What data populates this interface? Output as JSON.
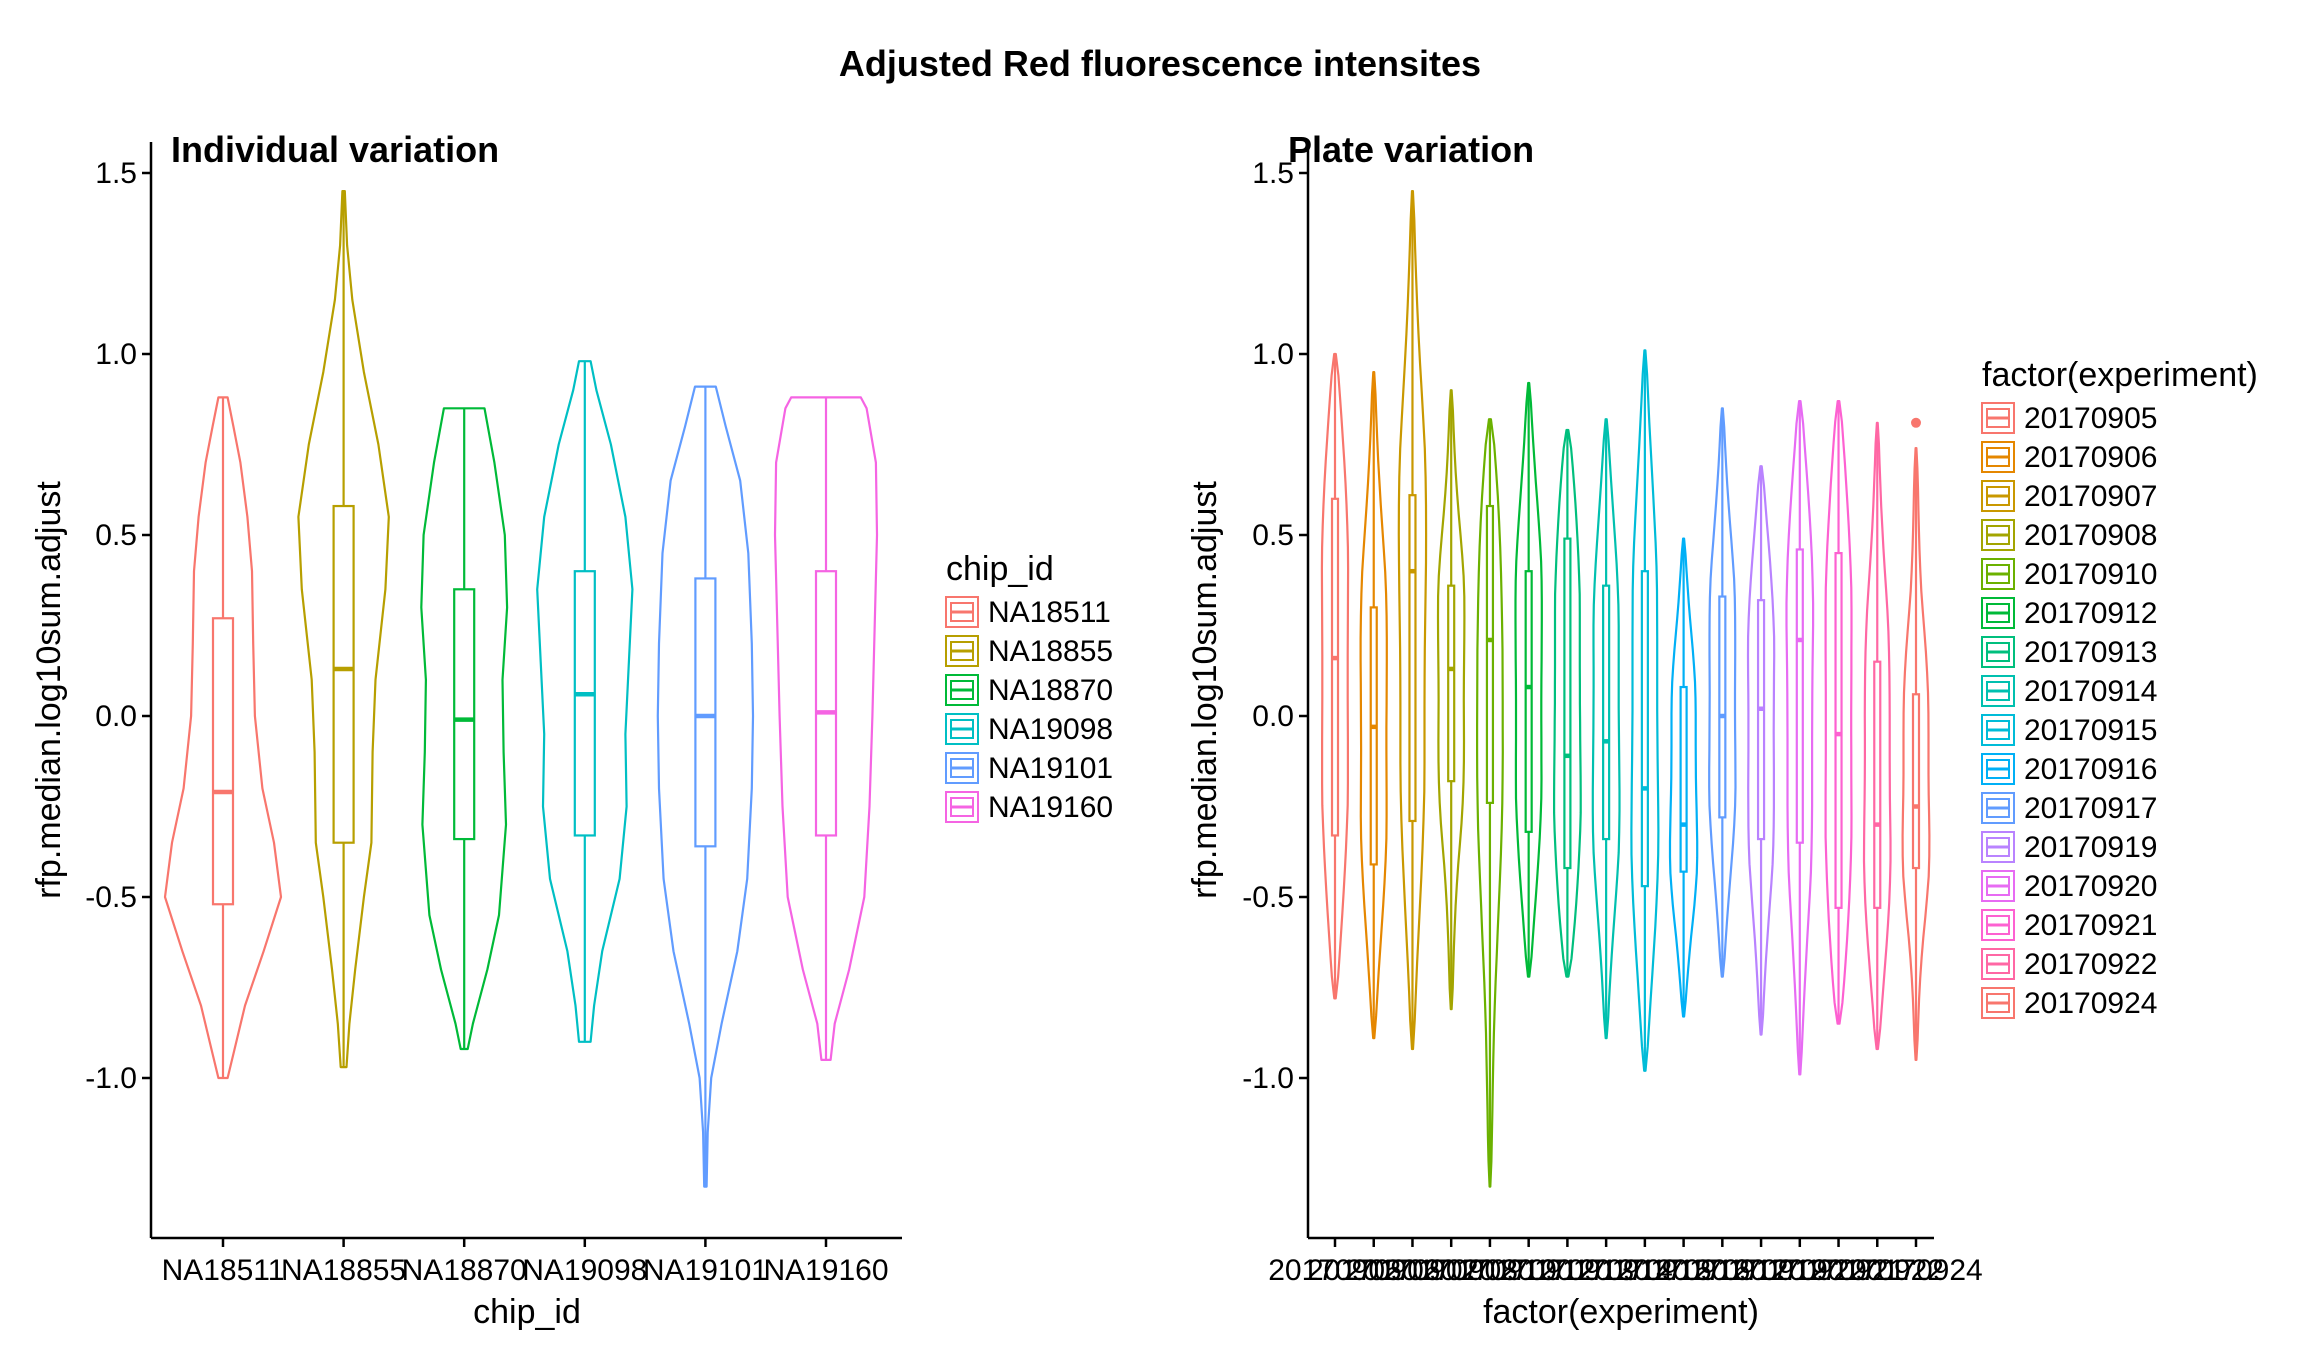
{
  "figure": {
    "title": "Adjusted Red fluorescence intensites"
  },
  "chart_data": [
    {
      "type": "violin",
      "title": "Individual variation",
      "xlabel": "chip_id",
      "ylabel": "rfp.median.log10sum.adjust",
      "ylim": [
        -1.45,
        1.55
      ],
      "yticks": [
        {
          "value": 1.5,
          "label": "1.5"
        },
        {
          "value": 1.0,
          "label": "1.0"
        },
        {
          "value": 0.5,
          "label": "0.5"
        },
        {
          "value": 0.0,
          "label": "0.0"
        },
        {
          "value": -0.5,
          "label": "-0.5"
        },
        {
          "value": -1.0,
          "label": "-1.0"
        }
      ],
      "legend_title": "chip_id",
      "legend_position": "right",
      "categories": [
        "NA18511",
        "NA18855",
        "NA18870",
        "NA19098",
        "NA19101",
        "NA19160"
      ],
      "colors": [
        "#F8766D",
        "#B79F00",
        "#00BA38",
        "#00BFC4",
        "#619CFF",
        "#F564E3"
      ],
      "series": [
        {
          "name": "NA18511",
          "min": -1.0,
          "q1": -0.52,
          "median": -0.21,
          "q3": 0.27,
          "max": 0.88,
          "profile": [
            [
              -1.0,
              0.08
            ],
            [
              -0.92,
              0.2
            ],
            [
              -0.8,
              0.38
            ],
            [
              -0.65,
              0.7
            ],
            [
              -0.5,
              1.0
            ],
            [
              -0.35,
              0.88
            ],
            [
              -0.2,
              0.68
            ],
            [
              0.0,
              0.55
            ],
            [
              0.2,
              0.52
            ],
            [
              0.4,
              0.5
            ],
            [
              0.55,
              0.42
            ],
            [
              0.7,
              0.3
            ],
            [
              0.8,
              0.18
            ],
            [
              0.88,
              0.08
            ]
          ]
        },
        {
          "name": "NA18855",
          "min": -0.97,
          "q1": -0.35,
          "median": 0.13,
          "q3": 0.58,
          "max": 1.45,
          "profile": [
            [
              -0.97,
              0.05
            ],
            [
              -0.85,
              0.1
            ],
            [
              -0.7,
              0.2
            ],
            [
              -0.5,
              0.35
            ],
            [
              -0.35,
              0.48
            ],
            [
              -0.1,
              0.5
            ],
            [
              0.1,
              0.55
            ],
            [
              0.35,
              0.72
            ],
            [
              0.55,
              0.78
            ],
            [
              0.75,
              0.6
            ],
            [
              0.95,
              0.35
            ],
            [
              1.15,
              0.15
            ],
            [
              1.3,
              0.06
            ],
            [
              1.45,
              0.02
            ]
          ]
        },
        {
          "name": "NA18870",
          "min": -0.92,
          "q1": -0.34,
          "median": -0.01,
          "q3": 0.35,
          "max": 0.85,
          "profile": [
            [
              -0.92,
              0.06
            ],
            [
              -0.85,
              0.15
            ],
            [
              -0.7,
              0.4
            ],
            [
              -0.55,
              0.6
            ],
            [
              -0.3,
              0.72
            ],
            [
              -0.1,
              0.68
            ],
            [
              0.1,
              0.66
            ],
            [
              0.3,
              0.74
            ],
            [
              0.5,
              0.7
            ],
            [
              0.7,
              0.52
            ],
            [
              0.85,
              0.35
            ]
          ]
        },
        {
          "name": "NA19098",
          "min": -0.9,
          "q1": -0.33,
          "median": 0.06,
          "q3": 0.4,
          "max": 0.98,
          "profile": [
            [
              -0.9,
              0.1
            ],
            [
              -0.8,
              0.16
            ],
            [
              -0.65,
              0.3
            ],
            [
              -0.45,
              0.6
            ],
            [
              -0.25,
              0.72
            ],
            [
              -0.05,
              0.7
            ],
            [
              0.15,
              0.76
            ],
            [
              0.35,
              0.82
            ],
            [
              0.55,
              0.7
            ],
            [
              0.75,
              0.45
            ],
            [
              0.9,
              0.2
            ],
            [
              0.98,
              0.1
            ]
          ]
        },
        {
          "name": "NA19101",
          "min": -1.3,
          "q1": -0.36,
          "median": 0.0,
          "q3": 0.38,
          "max": 0.91,
          "profile": [
            [
              -1.3,
              0.02
            ],
            [
              -1.15,
              0.04
            ],
            [
              -1.0,
              0.1
            ],
            [
              -0.85,
              0.28
            ],
            [
              -0.65,
              0.55
            ],
            [
              -0.45,
              0.72
            ],
            [
              -0.2,
              0.8
            ],
            [
              0.0,
              0.82
            ],
            [
              0.2,
              0.8
            ],
            [
              0.45,
              0.74
            ],
            [
              0.65,
              0.6
            ],
            [
              0.8,
              0.35
            ],
            [
              0.91,
              0.18
            ]
          ]
        },
        {
          "name": "NA19160",
          "min": -0.95,
          "q1": -0.33,
          "median": 0.01,
          "q3": 0.4,
          "max": 0.88,
          "profile": [
            [
              -0.95,
              0.08
            ],
            [
              -0.85,
              0.15
            ],
            [
              -0.7,
              0.4
            ],
            [
              -0.5,
              0.66
            ],
            [
              -0.25,
              0.75
            ],
            [
              0.0,
              0.8
            ],
            [
              0.25,
              0.84
            ],
            [
              0.5,
              0.88
            ],
            [
              0.7,
              0.86
            ],
            [
              0.85,
              0.7
            ],
            [
              0.88,
              0.6
            ]
          ]
        }
      ]
    },
    {
      "type": "violin",
      "title": "Plate variation",
      "xlabel": "factor(experiment)",
      "ylabel": "rfp.median.log10sum.adjust",
      "ylim": [
        -1.45,
        1.55
      ],
      "yticks": [
        {
          "value": 1.5,
          "label": "1.5"
        },
        {
          "value": 1.0,
          "label": "1.0"
        },
        {
          "value": 0.5,
          "label": "0.5"
        },
        {
          "value": 0.0,
          "label": "0.0"
        },
        {
          "value": -0.5,
          "label": "-0.5"
        },
        {
          "value": -1.0,
          "label": "-1.0"
        }
      ],
      "legend_title": "factor(experiment)",
      "legend_position": "right",
      "categories": [
        "20170905",
        "20170906",
        "20170907",
        "20170908",
        "20170910",
        "20170912",
        "20170913",
        "20170914",
        "20170915",
        "20170916",
        "20170917",
        "20170919",
        "20170920",
        "20170921",
        "20170922",
        "20170924"
      ],
      "colors": [
        "#F8766D",
        "#E58700",
        "#C99800",
        "#A3A500",
        "#6BB100",
        "#00BA38",
        "#00BF7D",
        "#00C0AF",
        "#00BCD8",
        "#00B0F6",
        "#619CFF",
        "#B983FF",
        "#E76BF3",
        "#FD61D1",
        "#FF67A4",
        "#F8766D"
      ],
      "series": [
        {
          "name": "20170905",
          "min": -0.78,
          "q1": -0.33,
          "median": 0.16,
          "q3": 0.6,
          "max": 1.0
        },
        {
          "name": "20170906",
          "min": -0.89,
          "q1": -0.41,
          "median": -0.03,
          "q3": 0.3,
          "max": 0.95
        },
        {
          "name": "20170907",
          "min": -0.92,
          "q1": -0.29,
          "median": 0.4,
          "q3": 0.61,
          "max": 1.45
        },
        {
          "name": "20170908",
          "min": -0.81,
          "q1": -0.18,
          "median": 0.13,
          "q3": 0.36,
          "max": 0.9
        },
        {
          "name": "20170910",
          "min": -1.3,
          "q1": -0.24,
          "median": 0.21,
          "q3": 0.58,
          "max": 0.82
        },
        {
          "name": "20170912",
          "min": -0.72,
          "q1": -0.32,
          "median": 0.08,
          "q3": 0.4,
          "max": 0.92
        },
        {
          "name": "20170913",
          "min": -0.72,
          "q1": -0.42,
          "median": -0.11,
          "q3": 0.49,
          "max": 0.79
        },
        {
          "name": "20170914",
          "min": -0.89,
          "q1": -0.34,
          "median": -0.07,
          "q3": 0.36,
          "max": 0.82
        },
        {
          "name": "20170915",
          "min": -0.98,
          "q1": -0.47,
          "median": -0.2,
          "q3": 0.4,
          "max": 1.01
        },
        {
          "name": "20170916",
          "min": -0.83,
          "q1": -0.43,
          "median": -0.3,
          "q3": 0.08,
          "max": 0.49
        },
        {
          "name": "20170917",
          "min": -0.72,
          "q1": -0.28,
          "median": 0.0,
          "q3": 0.33,
          "max": 0.85
        },
        {
          "name": "20170919",
          "min": -0.88,
          "q1": -0.34,
          "median": 0.02,
          "q3": 0.32,
          "max": 0.69
        },
        {
          "name": "20170920",
          "min": -0.99,
          "q1": -0.35,
          "median": 0.21,
          "q3": 0.46,
          "max": 0.87
        },
        {
          "name": "20170921",
          "min": -0.85,
          "q1": -0.53,
          "median": -0.05,
          "q3": 0.45,
          "max": 0.87
        },
        {
          "name": "20170922",
          "min": -0.92,
          "q1": -0.53,
          "median": -0.3,
          "q3": 0.15,
          "max": 0.81
        },
        {
          "name": "20170924",
          "min": -0.95,
          "q1": -0.42,
          "median": -0.25,
          "q3": 0.06,
          "max": 0.74,
          "outliers": [
            0.81
          ]
        }
      ]
    }
  ]
}
